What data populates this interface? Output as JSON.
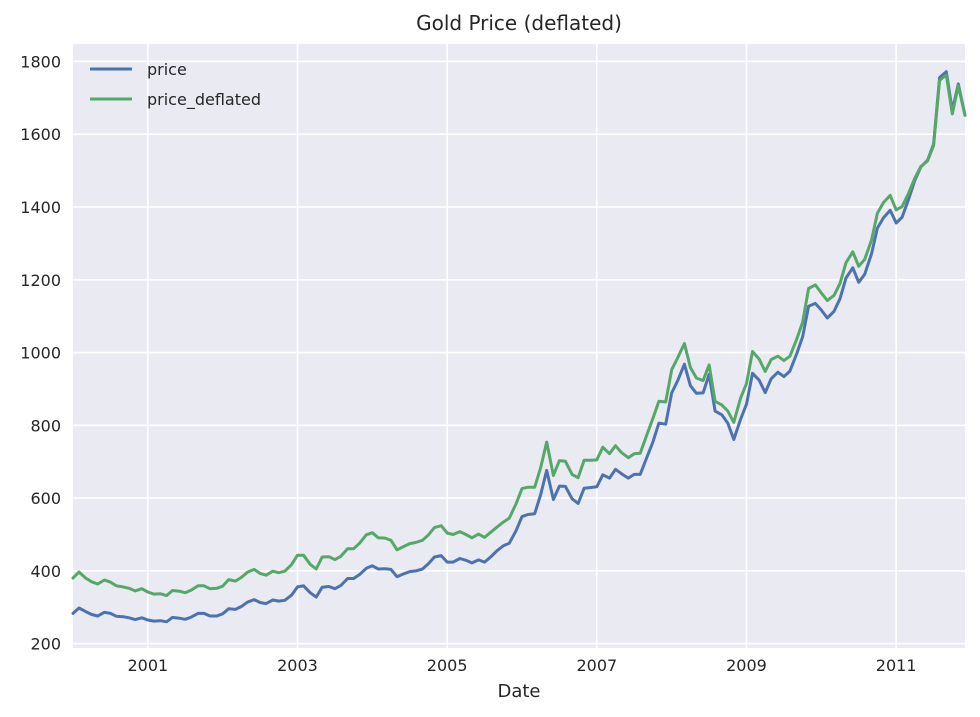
{
  "chart_data": {
    "type": "line",
    "title": "Gold Price (deflated)",
    "xlabel": "Date",
    "ylabel": "",
    "xlim": [
      2000.0,
      2011.92
    ],
    "ylim": [
      188,
      1848
    ],
    "yticks": [
      200,
      400,
      600,
      800,
      1000,
      1200,
      1400,
      1600,
      1800
    ],
    "xticks": [
      2001,
      2003,
      2005,
      2007,
      2009,
      2011
    ],
    "grid": true,
    "legend": "top-left",
    "series": [
      {
        "name": "price",
        "color": "#4c72b0",
        "values": [
          [
            2000.0,
            283
          ],
          [
            2000.08,
            298
          ],
          [
            2000.17,
            288
          ],
          [
            2000.25,
            280
          ],
          [
            2000.33,
            276
          ],
          [
            2000.42,
            286
          ],
          [
            2000.5,
            283
          ],
          [
            2000.58,
            275
          ],
          [
            2000.67,
            274
          ],
          [
            2000.75,
            271
          ],
          [
            2000.83,
            266
          ],
          [
            2000.92,
            271
          ],
          [
            2001.0,
            265
          ],
          [
            2001.08,
            262
          ],
          [
            2001.17,
            263
          ],
          [
            2001.25,
            260
          ],
          [
            2001.33,
            272
          ],
          [
            2001.42,
            270
          ],
          [
            2001.5,
            267
          ],
          [
            2001.58,
            273
          ],
          [
            2001.67,
            283
          ],
          [
            2001.75,
            283
          ],
          [
            2001.83,
            276
          ],
          [
            2001.92,
            276
          ],
          [
            2002.0,
            282
          ],
          [
            2002.08,
            296
          ],
          [
            2002.17,
            294
          ],
          [
            2002.25,
            302
          ],
          [
            2002.33,
            314
          ],
          [
            2002.42,
            321
          ],
          [
            2002.5,
            313
          ],
          [
            2002.58,
            310
          ],
          [
            2002.67,
            320
          ],
          [
            2002.75,
            317
          ],
          [
            2002.83,
            319
          ],
          [
            2002.92,
            333
          ],
          [
            2003.0,
            356
          ],
          [
            2003.08,
            359
          ],
          [
            2003.17,
            340
          ],
          [
            2003.25,
            328
          ],
          [
            2003.33,
            355
          ],
          [
            2003.42,
            357
          ],
          [
            2003.5,
            351
          ],
          [
            2003.58,
            360
          ],
          [
            2003.67,
            379
          ],
          [
            2003.75,
            379
          ],
          [
            2003.83,
            390
          ],
          [
            2003.92,
            407
          ],
          [
            2004.0,
            414
          ],
          [
            2004.08,
            405
          ],
          [
            2004.17,
            406
          ],
          [
            2004.25,
            404
          ],
          [
            2004.33,
            384
          ],
          [
            2004.42,
            392
          ],
          [
            2004.5,
            398
          ],
          [
            2004.58,
            400
          ],
          [
            2004.67,
            405
          ],
          [
            2004.75,
            420
          ],
          [
            2004.83,
            438
          ],
          [
            2004.92,
            442
          ],
          [
            2005.0,
            424
          ],
          [
            2005.08,
            424
          ],
          [
            2005.17,
            434
          ],
          [
            2005.25,
            429
          ],
          [
            2005.33,
            422
          ],
          [
            2005.42,
            430
          ],
          [
            2005.5,
            424
          ],
          [
            2005.58,
            438
          ],
          [
            2005.67,
            456
          ],
          [
            2005.75,
            469
          ],
          [
            2005.83,
            476
          ],
          [
            2005.92,
            510
          ],
          [
            2006.0,
            549
          ],
          [
            2006.08,
            555
          ],
          [
            2006.17,
            557
          ],
          [
            2006.25,
            610
          ],
          [
            2006.33,
            676
          ],
          [
            2006.42,
            596
          ],
          [
            2006.5,
            633
          ],
          [
            2006.58,
            632
          ],
          [
            2006.67,
            598
          ],
          [
            2006.75,
            585
          ],
          [
            2006.83,
            627
          ],
          [
            2006.92,
            629
          ],
          [
            2007.0,
            631
          ],
          [
            2007.08,
            664
          ],
          [
            2007.17,
            655
          ],
          [
            2007.25,
            679
          ],
          [
            2007.33,
            667
          ],
          [
            2007.42,
            655
          ],
          [
            2007.5,
            665
          ],
          [
            2007.58,
            665
          ],
          [
            2007.67,
            713
          ],
          [
            2007.75,
            754
          ],
          [
            2007.83,
            806
          ],
          [
            2007.92,
            803
          ],
          [
            2008.0,
            889
          ],
          [
            2008.08,
            922
          ],
          [
            2008.17,
            968
          ],
          [
            2008.25,
            909
          ],
          [
            2008.33,
            888
          ],
          [
            2008.42,
            889
          ],
          [
            2008.5,
            940
          ],
          [
            2008.58,
            839
          ],
          [
            2008.67,
            829
          ],
          [
            2008.75,
            806
          ],
          [
            2008.83,
            761
          ],
          [
            2008.92,
            816
          ],
          [
            2009.0,
            858
          ],
          [
            2009.08,
            943
          ],
          [
            2009.17,
            924
          ],
          [
            2009.25,
            890
          ],
          [
            2009.33,
            928
          ],
          [
            2009.42,
            946
          ],
          [
            2009.5,
            934
          ],
          [
            2009.58,
            949
          ],
          [
            2009.67,
            996
          ],
          [
            2009.75,
            1043
          ],
          [
            2009.83,
            1127
          ],
          [
            2009.92,
            1135
          ],
          [
            2010.0,
            1117
          ],
          [
            2010.08,
            1095
          ],
          [
            2010.17,
            1113
          ],
          [
            2010.25,
            1148
          ],
          [
            2010.33,
            1205
          ],
          [
            2010.42,
            1233
          ],
          [
            2010.5,
            1193
          ],
          [
            2010.58,
            1215
          ],
          [
            2010.67,
            1271
          ],
          [
            2010.75,
            1342
          ],
          [
            2010.83,
            1370
          ],
          [
            2010.92,
            1391
          ],
          [
            2011.0,
            1356
          ],
          [
            2011.08,
            1372
          ],
          [
            2011.17,
            1424
          ],
          [
            2011.25,
            1474
          ],
          [
            2011.33,
            1510
          ],
          [
            2011.42,
            1529
          ],
          [
            2011.5,
            1573
          ],
          [
            2011.58,
            1756
          ],
          [
            2011.67,
            1772
          ],
          [
            2011.75,
            1665
          ],
          [
            2011.83,
            1738
          ],
          [
            2011.92,
            1652
          ]
        ]
      },
      {
        "name": "price_deflated",
        "color": "#55a868",
        "values": [
          [
            2000.0,
            380
          ],
          [
            2000.08,
            397
          ],
          [
            2000.17,
            380
          ],
          [
            2000.25,
            370
          ],
          [
            2000.33,
            364
          ],
          [
            2000.42,
            375
          ],
          [
            2000.5,
            369
          ],
          [
            2000.58,
            359
          ],
          [
            2000.67,
            356
          ],
          [
            2000.75,
            352
          ],
          [
            2000.83,
            345
          ],
          [
            2000.92,
            351
          ],
          [
            2001.0,
            342
          ],
          [
            2001.08,
            336
          ],
          [
            2001.17,
            337
          ],
          [
            2001.25,
            332
          ],
          [
            2001.33,
            346
          ],
          [
            2001.42,
            344
          ],
          [
            2001.5,
            340
          ],
          [
            2001.58,
            347
          ],
          [
            2001.67,
            359
          ],
          [
            2001.75,
            359
          ],
          [
            2001.83,
            351
          ],
          [
            2001.92,
            352
          ],
          [
            2002.0,
            358
          ],
          [
            2002.08,
            376
          ],
          [
            2002.17,
            372
          ],
          [
            2002.25,
            382
          ],
          [
            2002.33,
            396
          ],
          [
            2002.42,
            404
          ],
          [
            2002.5,
            393
          ],
          [
            2002.58,
            388
          ],
          [
            2002.67,
            399
          ],
          [
            2002.75,
            395
          ],
          [
            2002.83,
            399
          ],
          [
            2002.92,
            417
          ],
          [
            2003.0,
            443
          ],
          [
            2003.08,
            443
          ],
          [
            2003.17,
            418
          ],
          [
            2003.25,
            405
          ],
          [
            2003.33,
            438
          ],
          [
            2003.42,
            439
          ],
          [
            2003.5,
            431
          ],
          [
            2003.58,
            440
          ],
          [
            2003.67,
            461
          ],
          [
            2003.75,
            461
          ],
          [
            2003.83,
            476
          ],
          [
            2003.92,
            499
          ],
          [
            2004.0,
            505
          ],
          [
            2004.08,
            491
          ],
          [
            2004.17,
            490
          ],
          [
            2004.25,
            484
          ],
          [
            2004.33,
            458
          ],
          [
            2004.42,
            467
          ],
          [
            2004.5,
            475
          ],
          [
            2004.58,
            478
          ],
          [
            2004.67,
            484
          ],
          [
            2004.75,
            499
          ],
          [
            2004.83,
            519
          ],
          [
            2004.92,
            524
          ],
          [
            2005.0,
            504
          ],
          [
            2005.08,
            500
          ],
          [
            2005.17,
            508
          ],
          [
            2005.25,
            500
          ],
          [
            2005.33,
            491
          ],
          [
            2005.42,
            501
          ],
          [
            2005.5,
            492
          ],
          [
            2005.58,
            506
          ],
          [
            2005.67,
            521
          ],
          [
            2005.75,
            534
          ],
          [
            2005.83,
            545
          ],
          [
            2005.92,
            584
          ],
          [
            2006.0,
            626
          ],
          [
            2006.08,
            630
          ],
          [
            2006.17,
            630
          ],
          [
            2006.25,
            684
          ],
          [
            2006.33,
            754
          ],
          [
            2006.42,
            662
          ],
          [
            2006.5,
            703
          ],
          [
            2006.58,
            701
          ],
          [
            2006.67,
            665
          ],
          [
            2006.75,
            656
          ],
          [
            2006.83,
            704
          ],
          [
            2006.92,
            704
          ],
          [
            2007.0,
            705
          ],
          [
            2007.08,
            740
          ],
          [
            2007.17,
            722
          ],
          [
            2007.25,
            744
          ],
          [
            2007.33,
            725
          ],
          [
            2007.42,
            711
          ],
          [
            2007.5,
            722
          ],
          [
            2007.58,
            723
          ],
          [
            2007.67,
            775
          ],
          [
            2007.75,
            819
          ],
          [
            2007.83,
            866
          ],
          [
            2007.92,
            864
          ],
          [
            2008.0,
            953
          ],
          [
            2008.08,
            985
          ],
          [
            2008.17,
            1025
          ],
          [
            2008.25,
            959
          ],
          [
            2008.33,
            930
          ],
          [
            2008.42,
            923
          ],
          [
            2008.5,
            966
          ],
          [
            2008.58,
            866
          ],
          [
            2008.67,
            856
          ],
          [
            2008.75,
            839
          ],
          [
            2008.83,
            808
          ],
          [
            2008.92,
            874
          ],
          [
            2009.0,
            915
          ],
          [
            2009.08,
            1003
          ],
          [
            2009.17,
            982
          ],
          [
            2009.25,
            948
          ],
          [
            2009.33,
            981
          ],
          [
            2009.42,
            990
          ],
          [
            2009.5,
            978
          ],
          [
            2009.58,
            990
          ],
          [
            2009.67,
            1036
          ],
          [
            2009.75,
            1083
          ],
          [
            2009.83,
            1176
          ],
          [
            2009.92,
            1186
          ],
          [
            2010.0,
            1164
          ],
          [
            2010.08,
            1143
          ],
          [
            2010.17,
            1157
          ],
          [
            2010.25,
            1190
          ],
          [
            2010.33,
            1247
          ],
          [
            2010.42,
            1277
          ],
          [
            2010.5,
            1237
          ],
          [
            2010.58,
            1256
          ],
          [
            2010.67,
            1309
          ],
          [
            2010.75,
            1383
          ],
          [
            2010.83,
            1412
          ],
          [
            2010.92,
            1432
          ],
          [
            2011.0,
            1392
          ],
          [
            2011.08,
            1401
          ],
          [
            2011.17,
            1440
          ],
          [
            2011.25,
            1480
          ],
          [
            2011.33,
            1511
          ],
          [
            2011.42,
            1527
          ],
          [
            2011.5,
            1569
          ],
          [
            2011.58,
            1748
          ],
          [
            2011.67,
            1763
          ],
          [
            2011.75,
            1656
          ],
          [
            2011.83,
            1734
          ],
          [
            2011.92,
            1652
          ]
        ]
      }
    ]
  }
}
